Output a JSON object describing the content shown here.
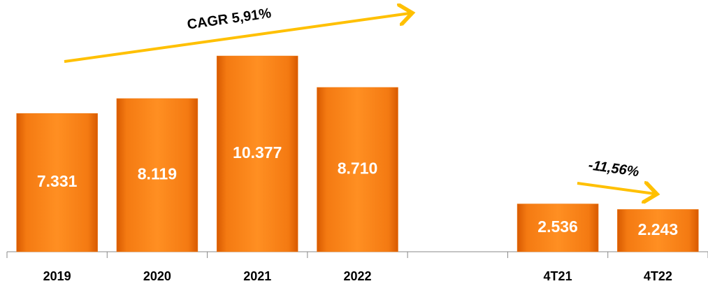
{
  "chart_data": {
    "type": "bar",
    "categories": [
      "2019",
      "2020",
      "2021",
      "2022",
      null,
      "4T21",
      "4T22"
    ],
    "values": [
      7331,
      8119,
      10377,
      8710,
      null,
      2536,
      2243
    ],
    "value_labels": [
      "7.331",
      "8.119",
      "10.377",
      "8.710",
      null,
      "2.536",
      "2.243"
    ],
    "color": "#f07a10",
    "annotations": [
      "CAGR 5,91%",
      "-11,56%"
    ]
  }
}
